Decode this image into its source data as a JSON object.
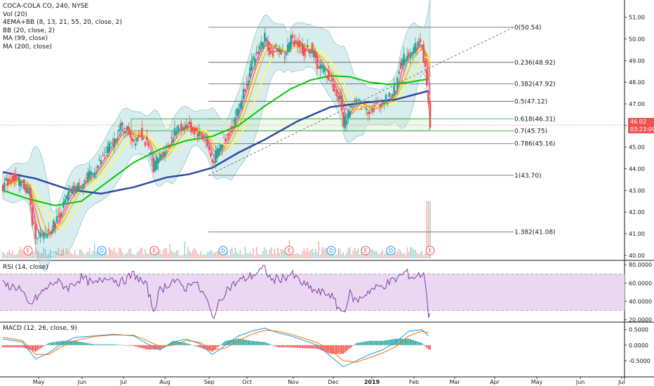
{
  "main_legend": {
    "title": "COCA-COLA CO, 240, NYSE",
    "lines": [
      "Vol (20)",
      "4EMA+BB (8, 13, 21, 55, 20, close, 2)",
      "BB (20, close, 2)",
      "MA (99, close)",
      "MA (200, close)"
    ]
  },
  "rsi_legend": "RSI (14, close)",
  "macd_legend": "MACD (12, 26, close, 9)",
  "last_price": "46.02",
  "countdown": "03:23:09",
  "colors": {
    "up": "#26a69a",
    "down": "#ef5350",
    "ma99": "#00c800",
    "ma200": "#2e4a9e",
    "bb_fill": "#b8dfe0",
    "rsi": "#7b3fa0",
    "rsi_band": "#ead7f2",
    "macd": "#2196f3",
    "signal": "#ff6d00",
    "price_line": "#ef5350"
  },
  "chart_data": [
    {
      "type": "line",
      "title": "COCA-COLA CO, 240, NYSE",
      "ylim": [
        39.8,
        51.8
      ],
      "y_ticks": [
        "51.00",
        "50.00",
        "49.00",
        "48.00",
        "47.00",
        "46.00",
        "45.00",
        "44.00",
        "43.00",
        "42.00",
        "41.00",
        "40.00"
      ],
      "x_ticks": [
        "May",
        "Jun",
        "Jul",
        "Aug",
        "Sep",
        "Oct",
        "Nov",
        "Dec",
        "2019",
        "Feb",
        "Mar",
        "Apr",
        "May",
        "Jun",
        "Jul"
      ],
      "price_path": [
        [
          0,
          43.2
        ],
        [
          3,
          43.6
        ],
        [
          6,
          43.3
        ],
        [
          8,
          42.9
        ],
        [
          9,
          41.5
        ],
        [
          10,
          41.0
        ],
        [
          12,
          40.9
        ],
        [
          14,
          41.1
        ],
        [
          16,
          41.5
        ],
        [
          18,
          42.1
        ],
        [
          20,
          42.8
        ],
        [
          22,
          43.1
        ],
        [
          24,
          43.3
        ],
        [
          26,
          43.6
        ],
        [
          28,
          43.9
        ],
        [
          30,
          44.4
        ],
        [
          32,
          44.9
        ],
        [
          34,
          45.3
        ],
        [
          36,
          45.9
        ],
        [
          38,
          45.8
        ],
        [
          40,
          45.3
        ],
        [
          42,
          45.7
        ],
        [
          44,
          45.1
        ],
        [
          46,
          44.1
        ],
        [
          48,
          44.6
        ],
        [
          50,
          45.0
        ],
        [
          52,
          45.6
        ],
        [
          54,
          45.9
        ],
        [
          56,
          46.0
        ],
        [
          58,
          45.8
        ],
        [
          60,
          45.6
        ],
        [
          62,
          45.3
        ],
        [
          64,
          44.3
        ],
        [
          65,
          44.6
        ],
        [
          67,
          45.2
        ],
        [
          69,
          45.7
        ],
        [
          72,
          46.8
        ],
        [
          74,
          47.8
        ],
        [
          76,
          48.8
        ],
        [
          78,
          49.5
        ],
        [
          80,
          50.1
        ],
        [
          82,
          49.3
        ],
        [
          84,
          49.6
        ],
        [
          86,
          49.2
        ],
        [
          88,
          50.0
        ],
        [
          90,
          49.8
        ],
        [
          92,
          49.4
        ],
        [
          94,
          49.6
        ],
        [
          96,
          48.8
        ],
        [
          98,
          48.6
        ],
        [
          100,
          48.1
        ],
        [
          102,
          47.4
        ],
        [
          103,
          47.2
        ],
        [
          104,
          46.1
        ],
        [
          106,
          46.8
        ],
        [
          108,
          47.1
        ],
        [
          110,
          46.9
        ],
        [
          112,
          46.7
        ],
        [
          114,
          46.9
        ],
        [
          116,
          47.1
        ],
        [
          118,
          47.3
        ],
        [
          120,
          47.7
        ],
        [
          121,
          48.7
        ],
        [
          123,
          49.2
        ],
        [
          125,
          49.5
        ],
        [
          127,
          49.8
        ],
        [
          128,
          49.6
        ],
        [
          129,
          48.6
        ],
        [
          130,
          46.9
        ],
        [
          130.5,
          46.02
        ]
      ],
      "ma200": [
        [
          0,
          43.85
        ],
        [
          10,
          43.55
        ],
        [
          20,
          43.05
        ],
        [
          30,
          42.85
        ],
        [
          40,
          43.15
        ],
        [
          50,
          43.6
        ],
        [
          57,
          43.75
        ],
        [
          64,
          44.05
        ],
        [
          72,
          44.75
        ],
        [
          80,
          45.35
        ],
        [
          90,
          46.2
        ],
        [
          100,
          46.85
        ],
        [
          110,
          47.05
        ],
        [
          120,
          47.2
        ],
        [
          130,
          47.6
        ]
      ],
      "ma99": [
        [
          0,
          43.0
        ],
        [
          8,
          42.6
        ],
        [
          16,
          42.3
        ],
        [
          24,
          42.5
        ],
        [
          32,
          43.4
        ],
        [
          40,
          44.3
        ],
        [
          48,
          44.9
        ],
        [
          56,
          45.3
        ],
        [
          64,
          45.5
        ],
        [
          72,
          46.0
        ],
        [
          80,
          46.9
        ],
        [
          88,
          47.7
        ],
        [
          94,
          48.1
        ],
        [
          100,
          48.3
        ],
        [
          106,
          48.25
        ],
        [
          112,
          48.0
        ],
        [
          118,
          47.9
        ],
        [
          124,
          48.0
        ],
        [
          130,
          48.15
        ]
      ],
      "fibonacci": [
        {
          "label": "0(50.54)",
          "price": 50.54
        },
        {
          "label": "0.236(48.92)",
          "price": 48.92
        },
        {
          "label": "0.382(47.92)",
          "price": 47.92
        },
        {
          "label": "0.5(47.12)",
          "price": 47.12
        },
        {
          "label": "0.618(46.31)",
          "price": 46.31
        },
        {
          "label": "0.7(45.75)",
          "price": 45.75
        },
        {
          "label": "0.786(45.16)",
          "price": 45.16
        },
        {
          "label": "1(43.70)",
          "price": 43.7
        },
        {
          "label": "1.382(41.08)",
          "price": 41.08
        }
      ],
      "earnings_markers": [
        "E",
        "D",
        "E",
        "D",
        "E",
        "D",
        "E",
        "D",
        "E"
      ],
      "last_price": 46.02
    },
    {
      "type": "line",
      "title": "RSI (14, close)",
      "ylim": [
        18,
        84
      ],
      "y_ticks": [
        "80.0000",
        "60.0000",
        "40.0000",
        "20.0000"
      ],
      "band": [
        30,
        70
      ],
      "series": [
        {
          "name": "RSI",
          "points": [
            [
              0,
              58
            ],
            [
              5,
              55
            ],
            [
              8,
              35
            ],
            [
              12,
              50
            ],
            [
              16,
              62
            ],
            [
              20,
              55
            ],
            [
              24,
              66
            ],
            [
              28,
              58
            ],
            [
              32,
              68
            ],
            [
              36,
              60
            ],
            [
              40,
              70
            ],
            [
              44,
              56
            ],
            [
              46,
              30
            ],
            [
              48,
              52
            ],
            [
              52,
              63
            ],
            [
              56,
              54
            ],
            [
              58,
              64
            ],
            [
              62,
              44
            ],
            [
              64,
              22
            ],
            [
              68,
              52
            ],
            [
              72,
              62
            ],
            [
              76,
              68
            ],
            [
              80,
              76
            ],
            [
              82,
              63
            ],
            [
              86,
              66
            ],
            [
              88,
              70
            ],
            [
              92,
              58
            ],
            [
              96,
              50
            ],
            [
              100,
              48
            ],
            [
              102,
              35
            ],
            [
              104,
              28
            ],
            [
              106,
              48
            ],
            [
              108,
              40
            ],
            [
              112,
              52
            ],
            [
              116,
              57
            ],
            [
              120,
              64
            ],
            [
              123,
              72
            ],
            [
              125,
              66
            ],
            [
              128,
              70
            ],
            [
              129,
              64
            ],
            [
              130,
              26
            ]
          ]
        }
      ]
    },
    {
      "type": "line",
      "title": "MACD (12, 26, close, 9)",
      "ylim": [
        -1.0,
        0.72
      ],
      "y_ticks": [
        "0.5000",
        "0.0000",
        "-0.5000"
      ],
      "series": [
        {
          "name": "MACD",
          "points": [
            [
              0,
              0.2
            ],
            [
              6,
              0.1
            ],
            [
              10,
              -0.45
            ],
            [
              14,
              -0.25
            ],
            [
              18,
              0.05
            ],
            [
              22,
              0.25
            ],
            [
              28,
              0.3
            ],
            [
              34,
              0.35
            ],
            [
              40,
              0.3
            ],
            [
              44,
              0.05
            ],
            [
              48,
              -0.15
            ],
            [
              52,
              0.1
            ],
            [
              56,
              0.2
            ],
            [
              60,
              0.05
            ],
            [
              64,
              -0.3
            ],
            [
              68,
              0.0
            ],
            [
              72,
              0.3
            ],
            [
              76,
              0.45
            ],
            [
              80,
              0.55
            ],
            [
              84,
              0.4
            ],
            [
              88,
              0.3
            ],
            [
              92,
              0.15
            ],
            [
              96,
              0.0
            ],
            [
              100,
              -0.35
            ],
            [
              104,
              -0.7
            ],
            [
              108,
              -0.5
            ],
            [
              112,
              -0.3
            ],
            [
              116,
              -0.15
            ],
            [
              120,
              0.1
            ],
            [
              124,
              0.45
            ],
            [
              128,
              0.5
            ],
            [
              130,
              0.3
            ]
          ]
        },
        {
          "name": "Signal",
          "points": [
            [
              0,
              0.25
            ],
            [
              6,
              0.15
            ],
            [
              10,
              -0.3
            ],
            [
              14,
              -0.3
            ],
            [
              18,
              -0.05
            ],
            [
              22,
              0.15
            ],
            [
              28,
              0.28
            ],
            [
              34,
              0.33
            ],
            [
              40,
              0.32
            ],
            [
              44,
              0.15
            ],
            [
              48,
              -0.05
            ],
            [
              52,
              0.0
            ],
            [
              56,
              0.15
            ],
            [
              60,
              0.1
            ],
            [
              64,
              -0.15
            ],
            [
              68,
              -0.1
            ],
            [
              72,
              0.15
            ],
            [
              76,
              0.35
            ],
            [
              80,
              0.48
            ],
            [
              84,
              0.45
            ],
            [
              88,
              0.35
            ],
            [
              92,
              0.22
            ],
            [
              96,
              0.08
            ],
            [
              100,
              -0.15
            ],
            [
              104,
              -0.5
            ],
            [
              108,
              -0.55
            ],
            [
              112,
              -0.4
            ],
            [
              116,
              -0.25
            ],
            [
              120,
              -0.05
            ],
            [
              124,
              0.3
            ],
            [
              128,
              0.45
            ],
            [
              130,
              0.4
            ]
          ]
        }
      ]
    }
  ]
}
